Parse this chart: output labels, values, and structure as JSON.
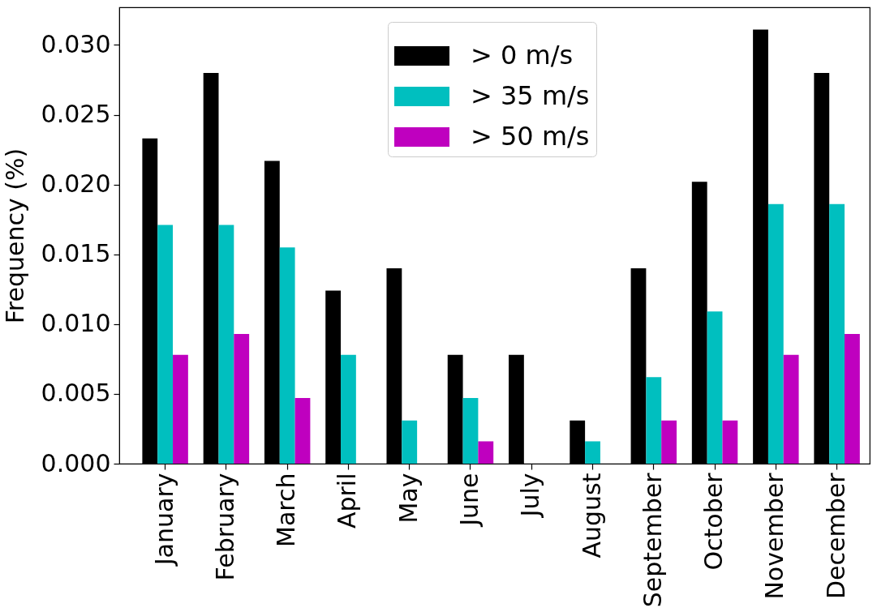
{
  "chart_data": {
    "type": "bar",
    "ylabel": "Frequency (%)",
    "categories": [
      "January",
      "February",
      "March",
      "April",
      "May",
      "June",
      "July",
      "August",
      "September",
      "October",
      "November",
      "December"
    ],
    "series": [
      {
        "name": "> 0 m/s",
        "color": "#000000",
        "values": [
          0.0233,
          0.028,
          0.0217,
          0.0124,
          0.014,
          0.0078,
          0.0078,
          0.0031,
          0.014,
          0.0202,
          0.0311,
          0.028
        ]
      },
      {
        "name": "> 35 m/s",
        "color": "#00bfbf",
        "values": [
          0.0171,
          0.0171,
          0.0155,
          0.0078,
          0.0031,
          0.0047,
          0,
          0.0016,
          0.0062,
          0.0109,
          0.0186,
          0.0186
        ]
      },
      {
        "name": "> 50 m/s",
        "color": "#bf00bf",
        "values": [
          0.0078,
          0.0093,
          0.0047,
          0,
          0,
          0.0016,
          0,
          0,
          0.0031,
          0.0031,
          0.0078,
          0.0093
        ]
      }
    ],
    "ylim": [
      0,
      0.0327
    ],
    "yticks": [
      {
        "value": 0,
        "label": "0.000"
      },
      0.005,
      {
        "value": 0.01,
        "label": "0.010"
      },
      0.015,
      {
        "value": 0.02,
        "label": "0.020"
      },
      0.025,
      {
        "value": 0.03,
        "label": "0.030"
      }
    ],
    "legend": "top"
  }
}
